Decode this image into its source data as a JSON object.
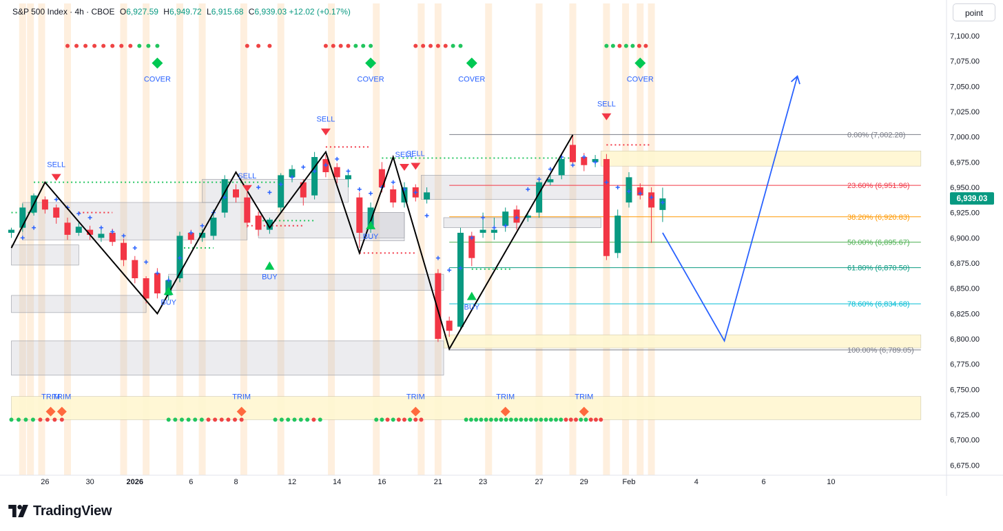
{
  "header": {
    "symbol": "S&P 500 Index · 4h · CBOE",
    "open_label": "O",
    "open": "6,927.59",
    "high_label": "H",
    "high": "6,949.72",
    "low_label": "L",
    "low": "6,915.68",
    "close_label": "C",
    "close": "6,939.03",
    "change": "+12.02 (+0.17%)"
  },
  "price_unit": "point",
  "last_price_label": "6,939.03",
  "brand": "TradingView",
  "colors": {
    "up": "#089981",
    "down": "#f23645",
    "signal_blue": "#2962ff",
    "green_dot": "#22c55e",
    "red_dot": "#ef4444",
    "orange_marker": "#ff6a3d",
    "band_orange": "#fde9d3",
    "zone_yellow": "#fff7d1",
    "box_gray": "#d4d6dc",
    "zigzag": "#000000",
    "projection": "#2962ff",
    "fib_0": "#787b86",
    "fib_236": "#f23645",
    "fib_382": "#ff9800",
    "fib_50": "#4caf50",
    "fib_618": "#089981",
    "fib_786": "#00bcd4",
    "fib_100": "#787b86"
  },
  "chart_data": {
    "type": "candlestick",
    "timeframe": "4h",
    "y_axis": {
      "min": 6665,
      "max": 7115,
      "ticks": [
        6675,
        6700,
        6725,
        6750,
        6775,
        6800,
        6825,
        6850,
        6875,
        6900,
        6925,
        6950,
        6975,
        7000,
        7025,
        7050,
        7075,
        7100
      ],
      "tick_labels": [
        "6,675.00",
        "6,700.00",
        "6,725.00",
        "6,750.00",
        "6,775.00",
        "6,800.00",
        "6,825.00",
        "6,850.00",
        "6,875.00",
        "6,900.00",
        "6,925.00",
        "6,950.00",
        "6,975.00",
        "7,000.00",
        "7,025.00",
        "7,050.00",
        "7,075.00",
        "7,100.00"
      ]
    },
    "x_axis": {
      "labels": [
        "26",
        "30",
        "2026",
        "6",
        "8",
        "12",
        "14",
        "16",
        "21",
        "23",
        "27",
        "29",
        "Feb",
        "4",
        "6",
        "10"
      ],
      "label_bars": [
        3,
        7,
        11,
        16,
        20,
        25,
        29,
        33,
        38,
        42,
        47,
        51,
        55,
        61,
        67,
        73
      ],
      "bold": [
        "2026"
      ],
      "bar_count": 75
    },
    "candles": [
      [
        0,
        6905,
        6908,
        6900,
        6910
      ],
      [
        1,
        6910,
        6930,
        6906,
        6934
      ],
      [
        2,
        6925,
        6942,
        6922,
        6944
      ],
      [
        3,
        6938,
        6928,
        6924,
        6941
      ],
      [
        4,
        6930,
        6920,
        6914,
        6933
      ],
      [
        5,
        6915,
        6903,
        6898,
        6920
      ],
      [
        6,
        6905,
        6911,
        6902,
        6915
      ],
      [
        7,
        6908,
        6903,
        6898,
        6912
      ],
      [
        8,
        6900,
        6904,
        6896,
        6908
      ],
      [
        9,
        6905,
        6896,
        6892,
        6909
      ],
      [
        10,
        6895,
        6878,
        6872,
        6899
      ],
      [
        11,
        6878,
        6860,
        6855,
        6882
      ],
      [
        12,
        6860,
        6840,
        6835,
        6862
      ],
      [
        13,
        6865,
        6845,
        6840,
        6870
      ],
      [
        14,
        6843,
        6858,
        6838,
        6862
      ],
      [
        15,
        6860,
        6902,
        6856,
        6906
      ],
      [
        16,
        6905,
        6898,
        6894,
        6908
      ],
      [
        17,
        6900,
        6905,
        6896,
        6909
      ],
      [
        18,
        6902,
        6920,
        6898,
        6928
      ],
      [
        19,
        6925,
        6958,
        6920,
        6962
      ],
      [
        20,
        6948,
        6940,
        6935,
        6953
      ],
      [
        21,
        6940,
        6915,
        6910,
        6945
      ],
      [
        22,
        6922,
        6908,
        6902,
        6926
      ],
      [
        23,
        6908,
        6918,
        6904,
        6920
      ],
      [
        24,
        6930,
        6962,
        6925,
        6964
      ],
      [
        25,
        6960,
        6968,
        6955,
        6972
      ],
      [
        26,
        6955,
        6940,
        6932,
        6958
      ],
      [
        27,
        6942,
        6980,
        6938,
        6985
      ],
      [
        28,
        6978,
        6965,
        6960,
        6982
      ],
      [
        29,
        6970,
        6960,
        6954,
        6974
      ],
      [
        30,
        6958,
        6962,
        6950,
        6966
      ],
      [
        31,
        6940,
        6905,
        6890,
        6945
      ],
      [
        32,
        6910,
        6930,
        6905,
        6935
      ],
      [
        33,
        6968,
        6950,
        6945,
        6975
      ],
      [
        34,
        6948,
        6935,
        6930,
        6952
      ],
      [
        35,
        6935,
        6950,
        6930,
        6955
      ],
      [
        36,
        6950,
        6940,
        6936,
        6953
      ],
      [
        37,
        6938,
        6945,
        6934,
        6950
      ],
      [
        38,
        6865,
        6800,
        6797,
        6869
      ],
      [
        39,
        6818,
        6808,
        6802,
        6822
      ],
      [
        40,
        6812,
        6905,
        6808,
        6910
      ],
      [
        41,
        6902,
        6880,
        6872,
        6906
      ],
      [
        42,
        6905,
        6908,
        6900,
        6925
      ],
      [
        43,
        6905,
        6908,
        6898,
        6920
      ],
      [
        44,
        6912,
        6926,
        6906,
        6930
      ],
      [
        45,
        6928,
        6915,
        6908,
        6932
      ],
      [
        46,
        6920,
        6922,
        6916,
        6926
      ],
      [
        47,
        6925,
        6955,
        6920,
        6958
      ],
      [
        48,
        6955,
        6958,
        6952,
        6962
      ],
      [
        49,
        6962,
        6978,
        6958,
        6982
      ],
      [
        50,
        6992,
        6975,
        6970,
        7002
      ],
      [
        51,
        6980,
        6972,
        6966,
        6984
      ],
      [
        52,
        6975,
        6978,
        6970,
        6982
      ],
      [
        53,
        6978,
        6882,
        6878,
        6983
      ],
      [
        54,
        6885,
        6922,
        6880,
        6928
      ],
      [
        55,
        6935,
        6960,
        6930,
        6965
      ],
      [
        56,
        6950,
        6942,
        6938,
        6954
      ],
      [
        57,
        6945,
        6930,
        6895,
        6950
      ],
      [
        58,
        6927.59,
        6939.03,
        6915.68,
        6949.72
      ]
    ],
    "fibonacci": [
      {
        "ratio": "0.00%",
        "price": 7002.28,
        "label": "0.00% (7,002.28)"
      },
      {
        "ratio": "23.60%",
        "price": 6951.96,
        "label": "23.60% (6,951.96)"
      },
      {
        "ratio": "38.20%",
        "price": 6920.83,
        "label": "38.20% (6,920.83)"
      },
      {
        "ratio": "50.00%",
        "price": 6895.67,
        "label": "50.00% (6,895.67)"
      },
      {
        "ratio": "61.80%",
        "price": 6870.5,
        "label": "61.80% (6,870.50)"
      },
      {
        "ratio": "78.60%",
        "price": 6834.68,
        "label": "78.60% (6,834.68)"
      },
      {
        "ratio": "100.00%",
        "price": 6789.05,
        "label": "100.00% (6,789.05)"
      }
    ],
    "zigzag": [
      [
        0,
        6890
      ],
      [
        3,
        6955
      ],
      [
        13,
        6825
      ],
      [
        20,
        6965
      ],
      [
        23,
        6910
      ],
      [
        28,
        6985
      ],
      [
        31,
        6885
      ],
      [
        34,
        6980
      ],
      [
        39,
        6790
      ],
      [
        50,
        7002
      ]
    ],
    "projection": [
      [
        58,
        6905
      ],
      [
        63.5,
        6798
      ],
      [
        70,
        7060
      ]
    ],
    "signals": [
      {
        "type": "SELL",
        "bar": 4,
        "price": 6955
      },
      {
        "type": "BUY",
        "bar": 14,
        "price": 6853
      },
      {
        "type": "SELL",
        "bar": 21,
        "price": 6944
      },
      {
        "type": "BUY",
        "bar": 23,
        "price": 6878
      },
      {
        "type": "SELL",
        "bar": 28,
        "price": 7000
      },
      {
        "type": "BUY",
        "bar": 32,
        "price": 6918
      },
      {
        "type": "SELL",
        "bar": 35,
        "price": 6965
      },
      {
        "type": "SELL",
        "bar": 36,
        "price": 6966
      },
      {
        "type": "BUY",
        "bar": 41,
        "price": 6848
      },
      {
        "type": "SELL",
        "bar": 53,
        "price": 7015
      }
    ],
    "cover_signals": [
      {
        "bar": 13
      },
      {
        "bar": 32
      },
      {
        "bar": 41
      },
      {
        "bar": 56
      }
    ],
    "trim_signals": [
      {
        "bar": 3.5
      },
      {
        "bar": 4.5
      },
      {
        "bar": 20.5
      },
      {
        "bar": 36
      },
      {
        "bar": 44
      },
      {
        "bar": 51
      }
    ],
    "signal_text": {
      "buy": "BUY",
      "sell": "SELL",
      "cover": "COVER",
      "trim": "TRIM"
    },
    "top_dots": [
      {
        "from": 5,
        "to": 13,
        "colors": "rrrrrrrrggg"
      },
      {
        "from": 21,
        "to": 23,
        "colors": "rrr"
      },
      {
        "from": 28,
        "to": 32,
        "colors": "rrrrggg"
      },
      {
        "from": 36,
        "to": 40,
        "colors": "rrrrrgg"
      },
      {
        "from": 53,
        "to": 56.5,
        "colors": "ggrggrr"
      }
    ],
    "bottom_dots": [
      {
        "from": 0,
        "to": 4.5,
        "colors": "ggggrrrr"
      },
      {
        "from": 14,
        "to": 20.5,
        "colors": "ggggggrrrrrr"
      },
      {
        "from": 23.5,
        "to": 27.5,
        "colors": "ggggggrg"
      },
      {
        "from": 32.5,
        "to": 36.5,
        "colors": "ggrgrrgrr"
      },
      {
        "from": 40.5,
        "to": 52.5,
        "colors": "ggggggggggggggggggggrrrggrrr"
      }
    ],
    "gray_boxes": [
      {
        "x1": 0,
        "x2": 6,
        "y1": 6873,
        "y2": 6893
      },
      {
        "x1": 0,
        "x2": 12,
        "y1": 6826,
        "y2": 6843
      },
      {
        "x1": 0,
        "x2": 38.5,
        "y1": 6764,
        "y2": 6798
      },
      {
        "x1": 1,
        "x2": 21,
        "y1": 6898,
        "y2": 6935
      },
      {
        "x1": 14,
        "x2": 38.5,
        "y1": 6848,
        "y2": 6864
      },
      {
        "x1": 17,
        "x2": 30,
        "y1": 6935,
        "y2": 6958
      },
      {
        "x1": 22,
        "x2": 35,
        "y1": 6900,
        "y2": 6925
      },
      {
        "x1": 31,
        "x2": 35,
        "y1": 6897,
        "y2": 6925
      },
      {
        "x1": 36.5,
        "x2": 53,
        "y1": 6938,
        "y2": 6962
      },
      {
        "x1": 38.5,
        "x2": 52.5,
        "y1": 6910,
        "y2": 6920
      }
    ],
    "yellow_zones": [
      {
        "x1": 52.5,
        "x2": 81,
        "y1": 6971,
        "y2": 6986
      },
      {
        "x1": 38.5,
        "x2": 81,
        "y1": 6791,
        "y2": 6804
      },
      {
        "x1": 0,
        "x2": 81,
        "y1": 6720,
        "y2": 6743
      }
    ],
    "support_lines": [
      {
        "x1": 0,
        "x2": 2,
        "price": 6925,
        "color": "#22c55e"
      },
      {
        "x1": 2,
        "x2": 24,
        "price": 6955,
        "color": "#22c55e"
      },
      {
        "x1": 6,
        "x2": 9,
        "price": 6925,
        "color": "#f23645"
      },
      {
        "x1": 15,
        "x2": 18,
        "price": 6890,
        "color": "#22c55e"
      },
      {
        "x1": 22,
        "x2": 27,
        "price": 6917,
        "color": "#22c55e"
      },
      {
        "x1": 21,
        "x2": 26,
        "price": 6912,
        "color": "#f23645"
      },
      {
        "x1": 28,
        "x2": 32,
        "price": 6990,
        "color": "#f23645"
      },
      {
        "x1": 31,
        "x2": 36,
        "price": 6885,
        "color": "#f23645"
      },
      {
        "x1": 33,
        "x2": 50,
        "price": 6979,
        "color": "#22c55e"
      },
      {
        "x1": 41,
        "x2": 44.5,
        "price": 6869,
        "color": "#22c55e"
      },
      {
        "x1": 53,
        "x2": 57,
        "price": 6992,
        "color": "#f23645"
      }
    ],
    "blue_crosses": [
      [
        1,
        6900
      ],
      [
        2,
        6910
      ],
      [
        4,
        6938
      ],
      [
        5,
        6930
      ],
      [
        6,
        6924
      ],
      [
        7,
        6920
      ],
      [
        8,
        6910
      ],
      [
        9,
        6906
      ],
      [
        10,
        6902
      ],
      [
        11,
        6890
      ],
      [
        12,
        6876
      ],
      [
        13,
        6865
      ],
      [
        14,
        6858
      ],
      [
        15,
        6880
      ],
      [
        16,
        6905
      ],
      [
        17,
        6912
      ],
      [
        18,
        6925
      ],
      [
        19,
        6940
      ],
      [
        21,
        6950
      ],
      [
        22,
        6950
      ],
      [
        23,
        6945
      ],
      [
        24,
        6953
      ],
      [
        25,
        6960
      ],
      [
        26,
        6970
      ],
      [
        27,
        6966
      ],
      [
        28,
        6972
      ],
      [
        29,
        6978
      ],
      [
        30,
        6966
      ],
      [
        31,
        6948
      ],
      [
        32,
        6944
      ],
      [
        33,
        6950
      ],
      [
        34,
        6955
      ],
      [
        35,
        6948
      ],
      [
        36,
        6945
      ],
      [
        37,
        6922
      ],
      [
        38,
        6880
      ],
      [
        39,
        6868
      ],
      [
        40,
        6870
      ],
      [
        41,
        6900
      ],
      [
        42,
        6920
      ],
      [
        43,
        6910
      ],
      [
        44,
        6912
      ],
      [
        45,
        6920
      ],
      [
        46,
        6948
      ],
      [
        47,
        6958
      ],
      [
        48,
        6968
      ],
      [
        49,
        6980
      ],
      [
        50,
        6972
      ],
      [
        51,
        6980
      ],
      [
        52,
        6975
      ],
      [
        53,
        6955
      ],
      [
        54,
        6950
      ],
      [
        55,
        6946
      ],
      [
        56,
        6944
      ],
      [
        57,
        6940
      ],
      [
        58,
        6935
      ]
    ],
    "session_bands": [
      1,
      1.7,
      2.7,
      5,
      10,
      12,
      15,
      17,
      20.7,
      24,
      28.5,
      32.5,
      36.5,
      38,
      42.5,
      47,
      50,
      53,
      54.7,
      56,
      57
    ]
  }
}
